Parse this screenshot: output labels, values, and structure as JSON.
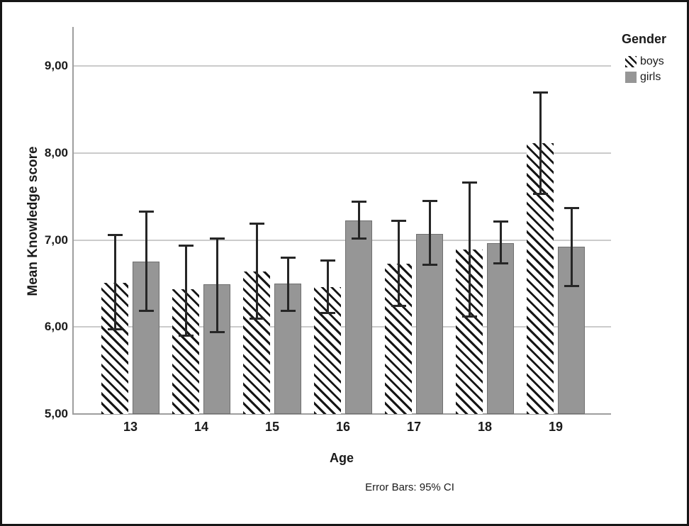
{
  "figure": {
    "border_color": "#161616",
    "bar_gray": "#969696",
    "hatch_black": "#161616",
    "gridline_color": "#cbcbcb",
    "axis_color": "#9e9e9e"
  },
  "legend": {
    "title": "Gender",
    "items": [
      {
        "label": "boys",
        "swatch": "hatched-swatch"
      },
      {
        "label": "girls",
        "swatch": "gray-swatch"
      }
    ]
  },
  "chart_data": {
    "type": "bar",
    "title": "",
    "xlabel": "Age",
    "ylabel": "Mean Knowledge score",
    "legend_title": "Gender",
    "legend_position": "top-right",
    "error_note": "Error Bars: 95% CI",
    "grid": true,
    "categories": [
      "13",
      "14",
      "15",
      "16",
      "17",
      "18",
      "19"
    ],
    "yticks": [
      "5,00",
      "6,00",
      "7,00",
      "8,00",
      "9,00"
    ],
    "ytick_values": [
      5,
      6,
      7,
      8,
      9
    ],
    "ylim": [
      5,
      9.45
    ],
    "series": [
      {
        "name": "boys",
        "style": "hatched",
        "values": [
          6.51,
          6.43,
          6.64,
          6.46,
          6.73,
          6.89,
          8.11
        ],
        "ci_low": [
          5.96,
          5.89,
          6.08,
          6.15,
          6.23,
          6.11,
          7.52
        ],
        "ci_high": [
          7.07,
          6.95,
          7.2,
          6.78,
          7.23,
          7.67,
          8.71
        ]
      },
      {
        "name": "girls",
        "style": "solid",
        "color": "#969696",
        "values": [
          6.75,
          6.49,
          6.5,
          7.22,
          7.07,
          6.96,
          6.92
        ],
        "ci_low": [
          6.17,
          5.93,
          6.17,
          7.0,
          6.7,
          6.72,
          6.46
        ],
        "ci_high": [
          7.34,
          7.03,
          6.81,
          7.45,
          7.46,
          7.22,
          7.38
        ]
      }
    ]
  }
}
